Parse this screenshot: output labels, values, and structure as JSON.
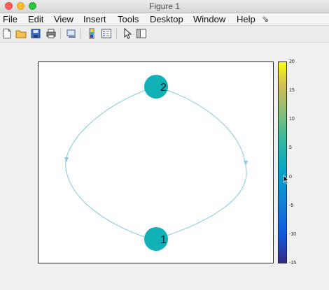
{
  "window": {
    "title": "Figure 1"
  },
  "menu": {
    "items": [
      "File",
      "Edit",
      "View",
      "Insert",
      "Tools",
      "Desktop",
      "Window",
      "Help"
    ],
    "overflow": "⇘"
  },
  "toolbar": {
    "icons": [
      "new-figure-icon",
      "open-file-icon",
      "save-icon",
      "print-icon",
      "link-plot-icon",
      "colorbar-icon",
      "legend-icon",
      "pointer-icon",
      "plot-tools-icon"
    ]
  },
  "graph": {
    "nodes": [
      {
        "id": "1",
        "label": "1"
      },
      {
        "id": "2",
        "label": "2"
      }
    ],
    "edges": [
      {
        "from": "1",
        "to": "2"
      },
      {
        "from": "2",
        "to": "1"
      }
    ],
    "node_color": "#12b1b8",
    "edge_color": "#7ec9e0"
  },
  "colorbar": {
    "ticks": [
      "20",
      "15",
      "10",
      "5",
      "0",
      "-5",
      "-10",
      "-15"
    ],
    "min": -15,
    "max": 20,
    "colormap": "parula"
  }
}
